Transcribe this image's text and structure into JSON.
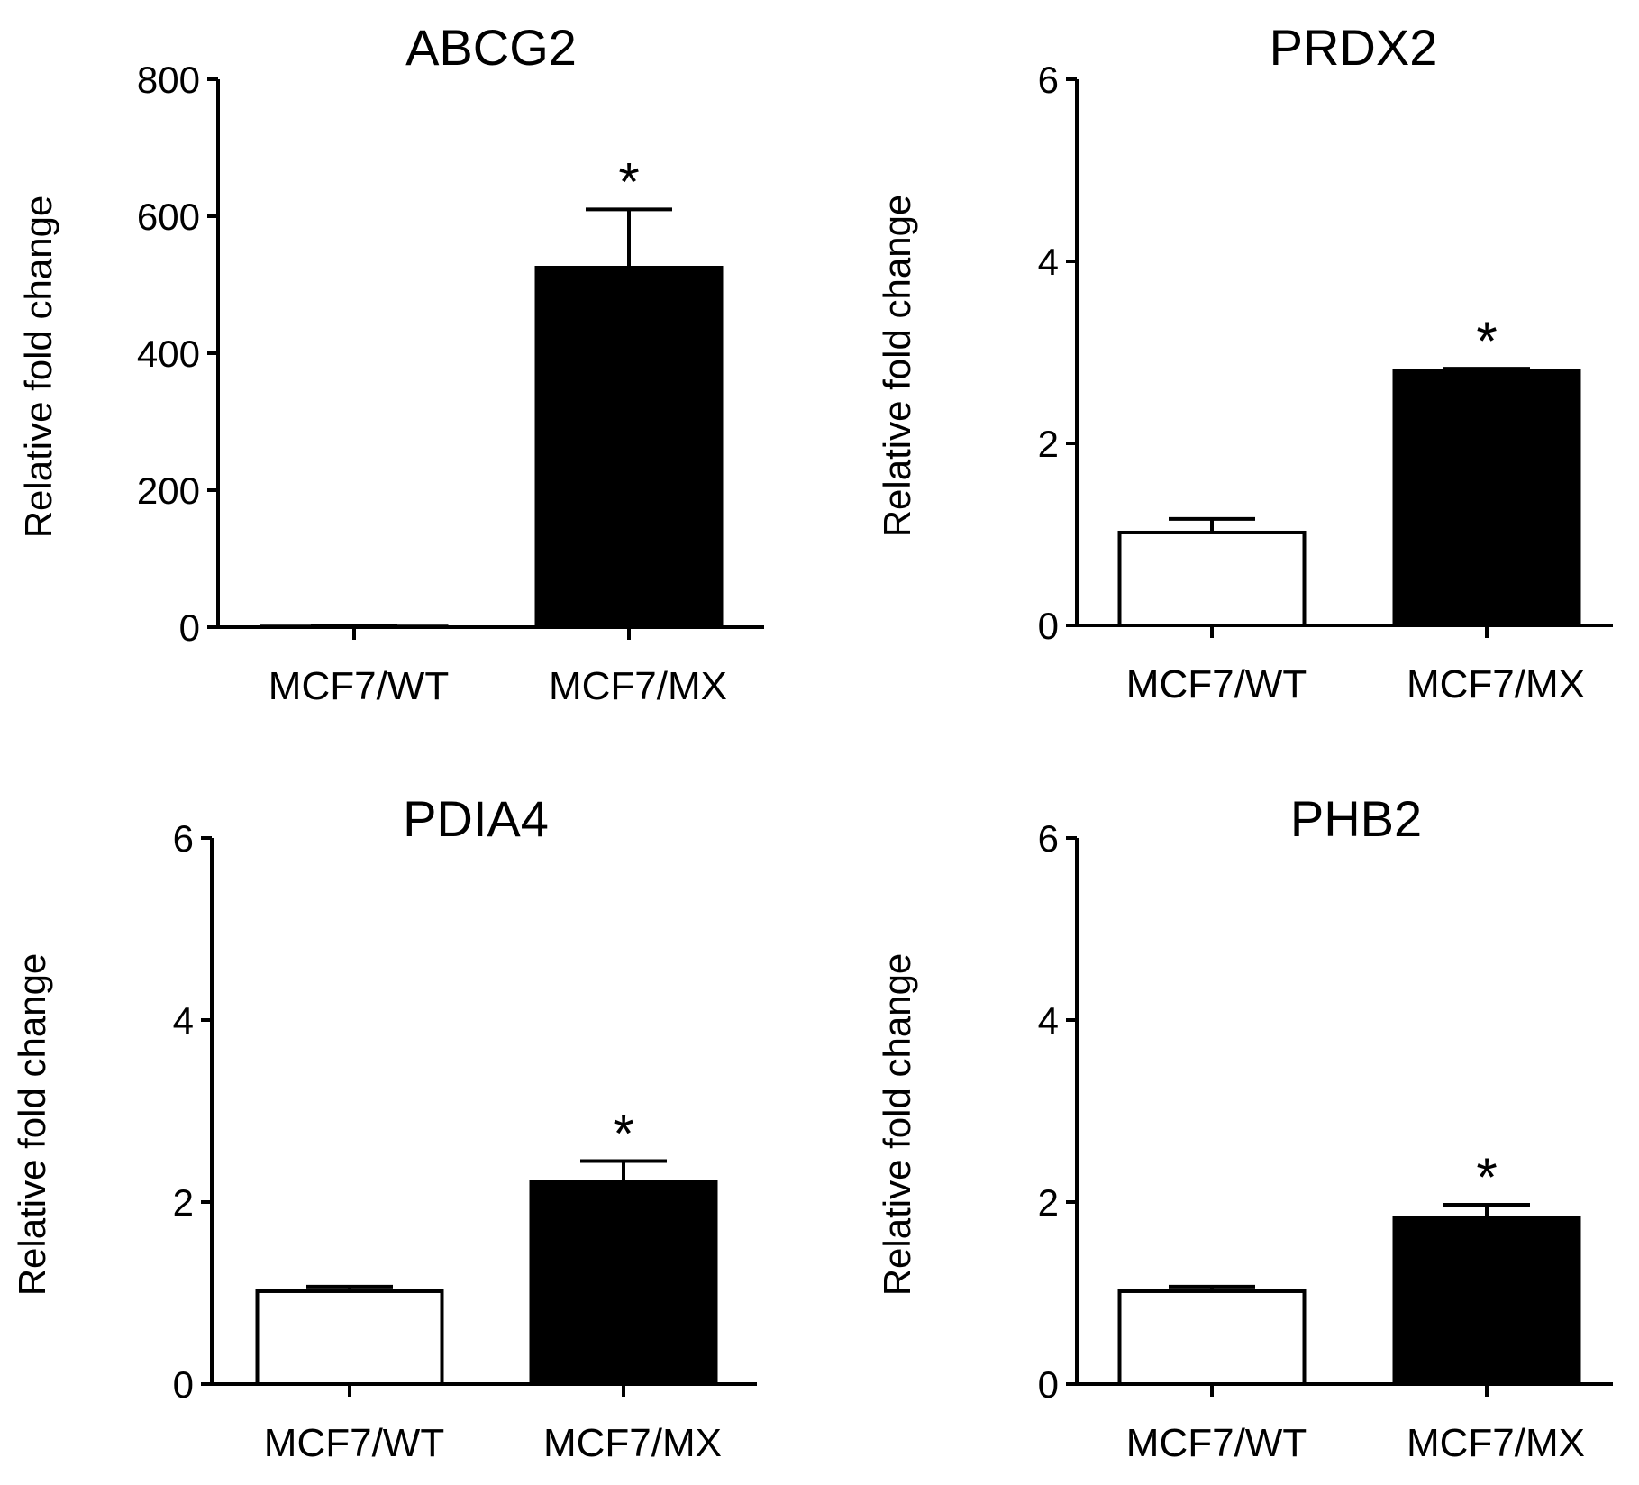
{
  "chart_data": [
    {
      "type": "bar",
      "title": "ABCG2",
      "ylabel": "Relative fold change",
      "xlabel": "",
      "categories": [
        "MCF7/WT",
        "MCF7/MX"
      ],
      "values": [
        1,
        525
      ],
      "errors": [
        1,
        85
      ],
      "fills": [
        "#ffffff",
        "#000000"
      ],
      "ylim": [
        0,
        800
      ],
      "yticks": [
        0,
        200,
        400,
        600,
        800
      ],
      "ytick_labels": [
        "0",
        "200",
        "400",
        "600",
        "800"
      ],
      "annotations": [
        {
          "category": "MCF7/MX",
          "text": "*"
        }
      ]
    },
    {
      "type": "bar",
      "title": "PRDX2",
      "ylabel": "Relative fold change",
      "xlabel": "",
      "categories": [
        "MCF7/WT",
        "MCF7/MX"
      ],
      "values": [
        1.02,
        2.8
      ],
      "errors": [
        0.15,
        0.02
      ],
      "fills": [
        "#ffffff",
        "#000000"
      ],
      "ylim": [
        0,
        6
      ],
      "yticks": [
        0,
        2,
        4,
        6
      ],
      "ytick_labels": [
        "0",
        "2",
        "4",
        "6"
      ],
      "annotations": [
        {
          "category": "MCF7/MX",
          "text": "*"
        }
      ]
    },
    {
      "type": "bar",
      "title": "PDIA4",
      "ylabel": "Relative fold change",
      "xlabel": "",
      "categories": [
        "MCF7/WT",
        "MCF7/MX"
      ],
      "values": [
        1.02,
        2.22
      ],
      "errors": [
        0.05,
        0.23
      ],
      "fills": [
        "#ffffff",
        "#000000"
      ],
      "ylim": [
        0,
        6
      ],
      "yticks": [
        0,
        2,
        4,
        6
      ],
      "ytick_labels": [
        "0",
        "2",
        "4",
        "6"
      ],
      "annotations": [
        {
          "category": "MCF7/MX",
          "text": "*"
        }
      ]
    },
    {
      "type": "bar",
      "title": "PHB2",
      "ylabel": "Relative fold change",
      "xlabel": "",
      "categories": [
        "MCF7/WT",
        "MCF7/MX"
      ],
      "values": [
        1.02,
        1.83
      ],
      "errors": [
        0.05,
        0.14
      ],
      "fills": [
        "#ffffff",
        "#000000"
      ],
      "ylim": [
        0,
        6
      ],
      "yticks": [
        0,
        2,
        4,
        6
      ],
      "ytick_labels": [
        "0",
        "2",
        "4",
        "6"
      ],
      "annotations": [
        {
          "category": "MCF7/MX",
          "text": "*"
        }
      ]
    }
  ]
}
